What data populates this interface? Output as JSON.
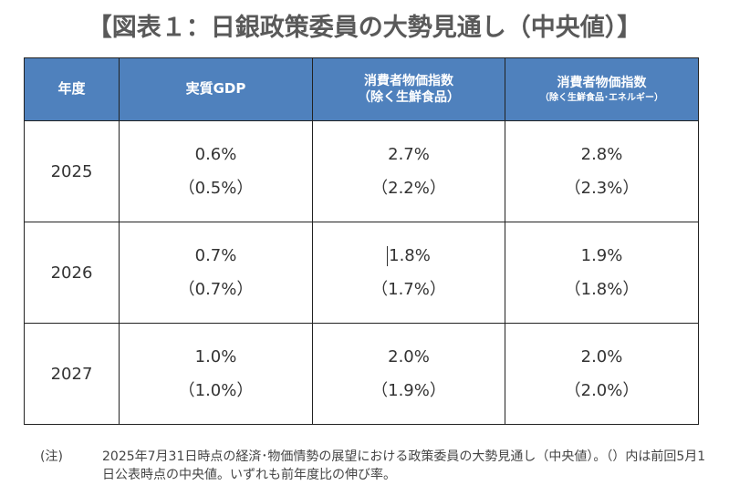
{
  "title": "【図表１：日銀政策委員の大勢見通し（中央値）】",
  "table": {
    "headers": [
      {
        "line1": "年度",
        "line2": ""
      },
      {
        "line1": "実質GDP",
        "line2": ""
      },
      {
        "line1": "消費者物価指数",
        "line2": "（除く生鮮食品）"
      },
      {
        "line1": "消費者物価指数",
        "line2": "（除く生鮮食品･エネルギー）"
      }
    ],
    "rows": [
      {
        "year": "2025",
        "gdp": "0.6%",
        "gdp_prev": "（0.5%）",
        "cpi": "2.7%",
        "cpi_prev": "（2.2%）",
        "core": "2.8%",
        "core_prev": "（2.3%）"
      },
      {
        "year": "2026",
        "gdp": "0.7%",
        "gdp_prev": "（0.7%）",
        "cpi": "1.8%",
        "cpi_prev": "（1.7%）",
        "core": "1.9%",
        "core_prev": "（1.8%）"
      },
      {
        "year": "2027",
        "gdp": "1.0%",
        "gdp_prev": "（1.0%）",
        "cpi": "2.0%",
        "cpi_prev": "（1.9%）",
        "core": "2.0%",
        "core_prev": "（2.0%）"
      }
    ]
  },
  "note": {
    "label": "(注)",
    "text": "2025年7月31日時点の経済･物価情勢の展望における政策委員の大勢見通し（中央値）。（）内は前回5月1日公表時点の中央値。いずれも前年度比の伸び率。"
  },
  "colors": {
    "header_bg": "#4f81bd",
    "header_text": "#ffffff",
    "border": "#222222"
  }
}
